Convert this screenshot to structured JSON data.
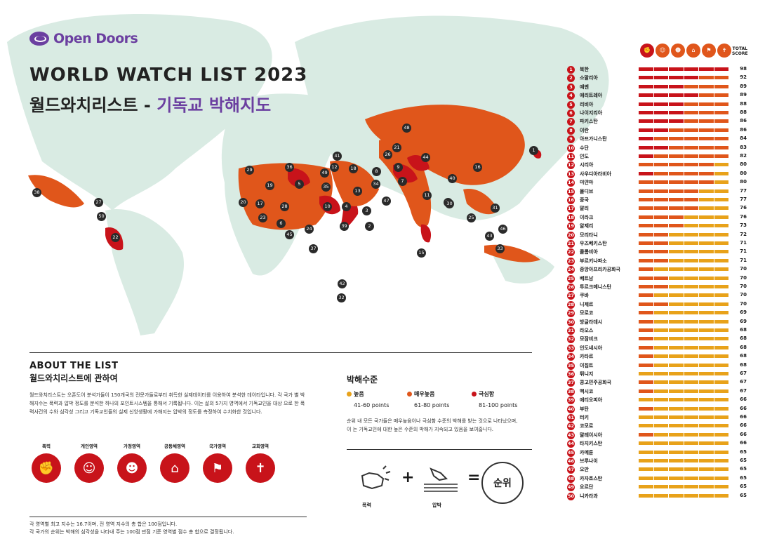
{
  "logo": {
    "text": "Open Doors"
  },
  "title": {
    "en": "WORLD WATCH LIST 2023",
    "ko_main": "월드와치리스트 - ",
    "ko_accent": "기독교 박해지도"
  },
  "about": {
    "title_en": "ABOUT THE LIST",
    "title_ko": "월드와치리스트에 관하여",
    "body": "월드와치리스트는 오픈도어 분석가들이 150개국의 전문가들로부터 취득한 실제데이터를 이용하여 분석한 데이타입니다. 각 국가 별 박해지수는 폭력과 압박 정도를 분석한 하나의 포인트시스템을 통해서 기록됩니다. 이는 삶의 5가지 영역에서 기독교인을 대상 으로 한 폭력사건의 수와 심각성 그리고 기독교인들의 실제 신앙생활에 가해지는 압박의 정도를 측정하여 수치화한 것입니다."
  },
  "categories": [
    {
      "label": "폭력",
      "icon": "fist-icon"
    },
    {
      "label": "개인영역",
      "icon": "person-icon"
    },
    {
      "label": "가정영역",
      "icon": "family-icon"
    },
    {
      "label": "공동체영역",
      "icon": "community-icon"
    },
    {
      "label": "국가영역",
      "icon": "flag-icon"
    },
    {
      "label": "교회영역",
      "icon": "church-icon"
    }
  ],
  "footnote": [
    "각 영역별 최고 지수는 16.7이며, 전 영역 지수의 총 합은 100점입니다.",
    "각 국가의 순위는 박해의 심각성을 나타내 주는 100점 만점 기준 영역별 점수 총 합으로 결정됩니다."
  ],
  "levels": {
    "title": "박해수준",
    "items": [
      {
        "name": "높음",
        "points": "41-60 points",
        "color": "#e8a21a"
      },
      {
        "name": "매우높음",
        "points": "61-80 points",
        "color": "#e0561b"
      },
      {
        "name": "극심함",
        "points": "81-100 points",
        "color": "#c8131a"
      }
    ],
    "note": [
      "순위 내 모든 국가들은 매우높음이나 극심함 수준의 박해를 받는 것으로 나타났으며,",
      "이 는 기독교인에 대한 높은 수준의 박해가 지속되고 있음을 보여줍니다."
    ]
  },
  "formula": {
    "violence": "폭력",
    "pressure": "압박",
    "plus": "+",
    "equals": "=",
    "rank": "순위"
  },
  "list_header": {
    "total": "TOTAL\nSCORE"
  },
  "countries": [
    {
      "rank": "1",
      "name": "북한",
      "score": "98"
    },
    {
      "rank": "2",
      "name": "소말리아",
      "score": "92"
    },
    {
      "rank": "3",
      "name": "예멘",
      "score": "89"
    },
    {
      "rank": "4",
      "name": "에리트레아",
      "score": "89"
    },
    {
      "rank": "5",
      "name": "리비아",
      "score": "88"
    },
    {
      "rank": "6",
      "name": "나이지리아",
      "score": "88"
    },
    {
      "rank": "7",
      "name": "파키스탄",
      "score": "86"
    },
    {
      "rank": "8",
      "name": "이란",
      "score": "86"
    },
    {
      "rank": "9",
      "name": "아프가니스탄",
      "score": "84"
    },
    {
      "rank": "10",
      "name": "수단",
      "score": "83"
    },
    {
      "rank": "11",
      "name": "인도",
      "score": "82"
    },
    {
      "rank": "12",
      "name": "시리아",
      "score": "80"
    },
    {
      "rank": "13",
      "name": "사우디아라비아",
      "score": "80"
    },
    {
      "rank": "14",
      "name": "미얀마",
      "score": "80"
    },
    {
      "rank": "15",
      "name": "몰디브",
      "score": "77"
    },
    {
      "rank": "16",
      "name": "중국",
      "score": "77"
    },
    {
      "rank": "17",
      "name": "말리",
      "score": "76"
    },
    {
      "rank": "18",
      "name": "이라크",
      "score": "76"
    },
    {
      "rank": "19",
      "name": "알제리",
      "score": "73"
    },
    {
      "rank": "20",
      "name": "모리타니",
      "score": "72"
    },
    {
      "rank": "21",
      "name": "우즈베키스탄",
      "score": "71"
    },
    {
      "rank": "22",
      "name": "콜롬비아",
      "score": "71"
    },
    {
      "rank": "23",
      "name": "부르키나파소",
      "score": "71"
    },
    {
      "rank": "24",
      "name": "중앙아프리카공화국",
      "score": "70"
    },
    {
      "rank": "25",
      "name": "베트남",
      "score": "70"
    },
    {
      "rank": "26",
      "name": "투르크메니스탄",
      "score": "70"
    },
    {
      "rank": "27",
      "name": "쿠바",
      "score": "70"
    },
    {
      "rank": "28",
      "name": "니제르",
      "score": "70"
    },
    {
      "rank": "29",
      "name": "모로코",
      "score": "69"
    },
    {
      "rank": "30",
      "name": "방글라데시",
      "score": "69"
    },
    {
      "rank": "31",
      "name": "라오스",
      "score": "68"
    },
    {
      "rank": "32",
      "name": "모잠비크",
      "score": "68"
    },
    {
      "rank": "33",
      "name": "인도네시아",
      "score": "68"
    },
    {
      "rank": "34",
      "name": "카타르",
      "score": "68"
    },
    {
      "rank": "35",
      "name": "이집트",
      "score": "68"
    },
    {
      "rank": "36",
      "name": "튀니지",
      "score": "67"
    },
    {
      "rank": "37",
      "name": "콩고민주공화국",
      "score": "67"
    },
    {
      "rank": "38",
      "name": "멕시코",
      "score": "67"
    },
    {
      "rank": "39",
      "name": "에티오피아",
      "score": "66"
    },
    {
      "rank": "40",
      "name": "부탄",
      "score": "66"
    },
    {
      "rank": "41",
      "name": "터키",
      "score": "66"
    },
    {
      "rank": "42",
      "name": "코모로",
      "score": "66"
    },
    {
      "rank": "43",
      "name": "말레이시아",
      "score": "66"
    },
    {
      "rank": "44",
      "name": "타지키스탄",
      "score": "66"
    },
    {
      "rank": "45",
      "name": "카메룬",
      "score": "65"
    },
    {
      "rank": "46",
      "name": "브루나이",
      "score": "65"
    },
    {
      "rank": "47",
      "name": "오만",
      "score": "65"
    },
    {
      "rank": "48",
      "name": "카자흐스탄",
      "score": "65"
    },
    {
      "rank": "49",
      "name": "요르단",
      "score": "65"
    },
    {
      "rank": "50",
      "name": "니카라과",
      "score": "65"
    }
  ],
  "map_pins": [
    "1",
    "2",
    "3",
    "4",
    "5",
    "6",
    "7",
    "8",
    "9",
    "10",
    "11",
    "12",
    "13",
    "14",
    "15",
    "16",
    "17",
    "18",
    "19",
    "20",
    "21",
    "22",
    "23",
    "24",
    "25",
    "26",
    "27",
    "28",
    "29",
    "30",
    "31",
    "32",
    "33",
    "34",
    "35",
    "36",
    "37",
    "38",
    "39",
    "40",
    "41",
    "42",
    "43",
    "44",
    "45",
    "46",
    "47",
    "48",
    "49",
    "50"
  ],
  "colors": {
    "high": "#e8a21a",
    "very_high": "#e0561b",
    "extreme": "#c8131a",
    "land": "#d9ebe3",
    "brand": "#6b3fa0"
  }
}
